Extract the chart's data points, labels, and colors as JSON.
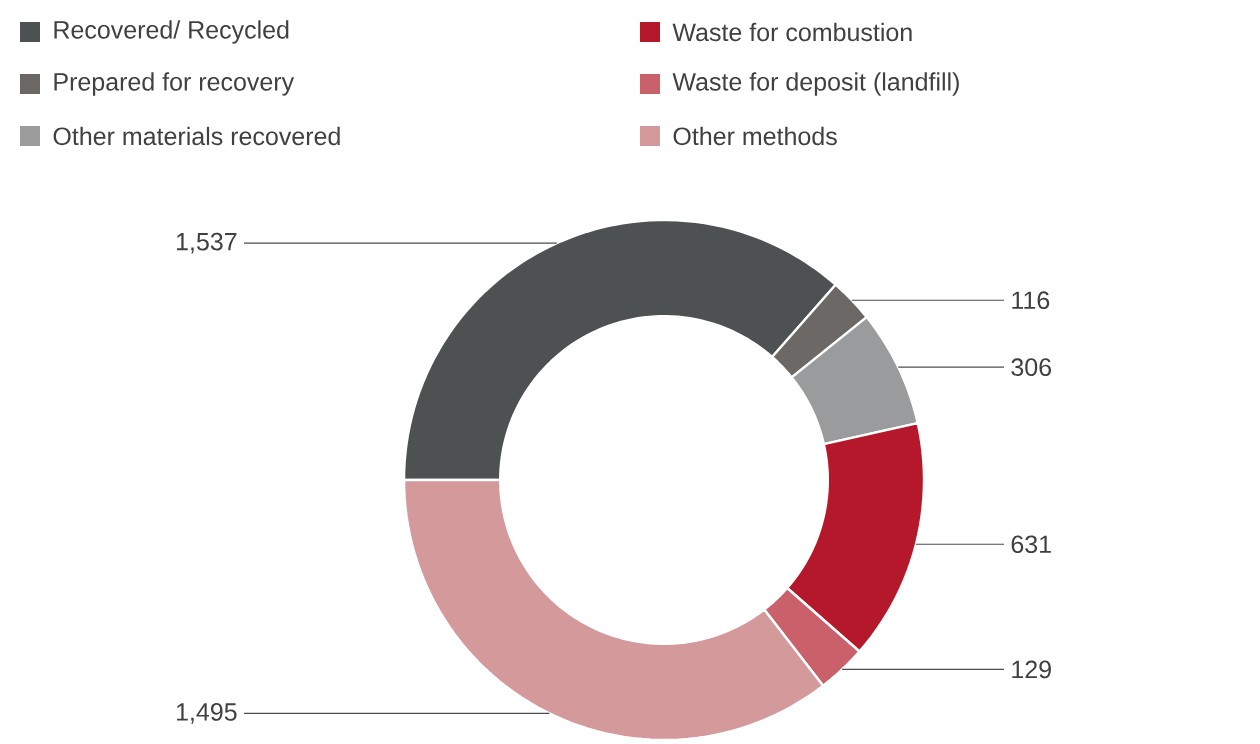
{
  "chart_data": {
    "type": "donut",
    "categories": [
      "Recovered/ Recycled",
      "Prepared for recovery",
      "Other materials recovered",
      "Waste for combustion",
      "Waste for deposit (landfill)",
      "Other methods"
    ],
    "values": [
      1537,
      116,
      306,
      631,
      129,
      1495
    ],
    "value_labels": [
      "1,537",
      "116",
      "306",
      "631",
      "129",
      "1,495"
    ],
    "colors": [
      "#4d5152",
      "#6b6866",
      "#999b9c",
      "#b5182b",
      "#c9606a",
      "#d4999b"
    ],
    "legend": "top left"
  }
}
